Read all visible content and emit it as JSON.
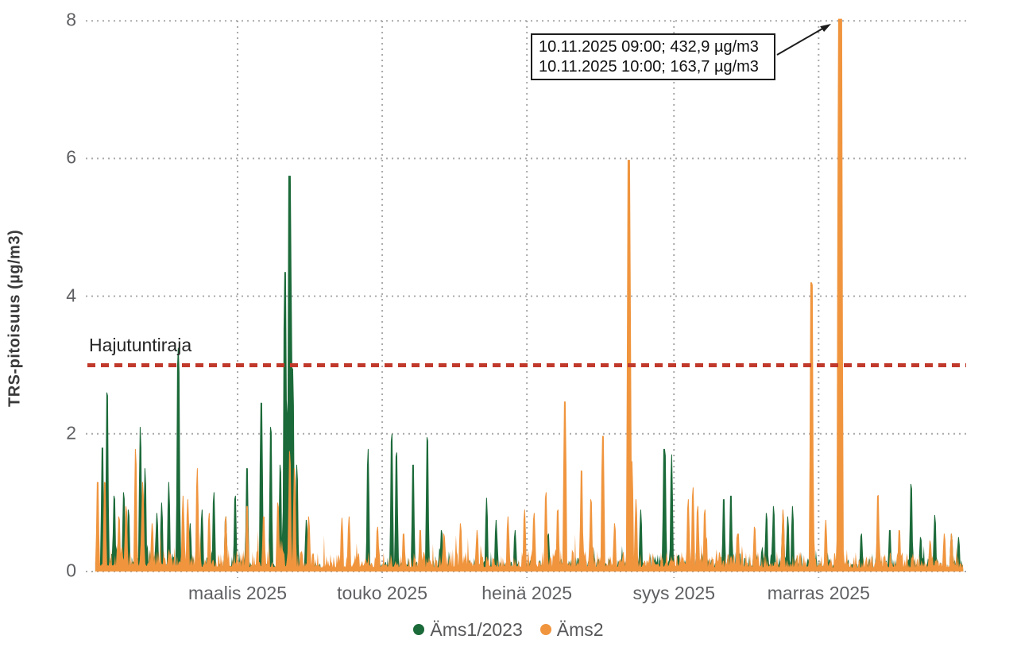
{
  "chart_data": {
    "type": "area",
    "title": "",
    "ylabel": "TRS-pitoisuus (µg/m3)",
    "xlabel": "",
    "ylim": [
      0,
      8
    ],
    "y_ticks": [
      0,
      2,
      4,
      6,
      8
    ],
    "x_ticks": [
      {
        "day": 60,
        "label": "maalis 2025"
      },
      {
        "day": 121,
        "label": "touko 2025"
      },
      {
        "day": 182,
        "label": "heinä 2025"
      },
      {
        "day": 244,
        "label": "syys 2025"
      },
      {
        "day": 305,
        "label": "marras 2025"
      }
    ],
    "time_axis": {
      "unit": "day-of-year 2025",
      "start_day": 0,
      "end_day": 366
    },
    "grid": "dotted",
    "grid_color": "#a9a9a9",
    "legend_position": "bottom-center",
    "threshold": {
      "label": "Hajutuntiraja",
      "value": 3,
      "color": "#c0392b",
      "style": "dashed"
    },
    "annotation": {
      "lines": [
        "10.11.2025 09:00; 432,9 µg/m3",
        "10.11.2025 10:00; 163,7 µg/m3"
      ],
      "points_to": {
        "series": "Äms2",
        "day": 314,
        "value_clipped_at": 8
      }
    },
    "noise_seed": 11,
    "series": [
      {
        "name": "Äms1/2023",
        "color": "#1b6a39",
        "min_value": 0.02,
        "peaks": [
          [
            3,
            1.8
          ],
          [
            5,
            2.6
          ],
          [
            8,
            1.1
          ],
          [
            12,
            1.15
          ],
          [
            14,
            0.9
          ],
          [
            19,
            2.1
          ],
          [
            21,
            1.5
          ],
          [
            26,
            0.85
          ],
          [
            28,
            1.0
          ],
          [
            31,
            1.3
          ],
          [
            35,
            3.25,
            0.45
          ],
          [
            40,
            0.7
          ],
          [
            45,
            0.9
          ],
          [
            50,
            1.15
          ],
          [
            55,
            0.8
          ],
          [
            59,
            1.1
          ],
          [
            64,
            1.5
          ],
          [
            70,
            2.45,
            0.45
          ],
          [
            74,
            2.1
          ],
          [
            78,
            1.55
          ],
          [
            80,
            4.35,
            0.5
          ],
          [
            82,
            5.75,
            0.6
          ],
          [
            83.3,
            2.95
          ],
          [
            85,
            1.55
          ],
          [
            89,
            0.75
          ],
          [
            115,
            1.78
          ],
          [
            125,
            2.0
          ],
          [
            127,
            1.73
          ],
          [
            134,
            1.55
          ],
          [
            140,
            1.95
          ],
          [
            146,
            0.6
          ],
          [
            165,
            1.07
          ],
          [
            169,
            0.75
          ],
          [
            177,
            0.6
          ],
          [
            191,
            0.55
          ],
          [
            230,
            0.9
          ],
          [
            240,
            1.78,
            0.5
          ],
          [
            243,
            1.7
          ],
          [
            252,
            0.6
          ],
          [
            265,
            1.05
          ],
          [
            268,
            1.1
          ],
          [
            283,
            0.85
          ],
          [
            286,
            0.95
          ],
          [
            290,
            0.85
          ],
          [
            292,
            0.8
          ],
          [
            294,
            0.95
          ],
          [
            323,
            0.55
          ],
          [
            335,
            0.6
          ],
          [
            344,
            1.27
          ],
          [
            348,
            0.5
          ],
          [
            354,
            0.82
          ],
          [
            361,
            0.55
          ],
          [
            364,
            0.5
          ]
        ],
        "baseline": [
          [
            0,
            34,
            0.42
          ],
          [
            34,
            60,
            0.3
          ],
          [
            60,
            95,
            0.33
          ],
          [
            95,
            118,
            0.07
          ],
          [
            118,
            160,
            0.26
          ],
          [
            160,
            196,
            0.22
          ],
          [
            196,
            232,
            0.28
          ],
          [
            232,
            298,
            0.36
          ],
          [
            298,
            366,
            0.26
          ]
        ]
      },
      {
        "name": "Äms2",
        "color": "#f0953e",
        "min_value": 0.05,
        "peaks": [
          [
            1,
            1.3
          ],
          [
            4,
            1.3
          ],
          [
            10,
            0.8
          ],
          [
            13,
            0.95
          ],
          [
            17,
            1.78
          ],
          [
            20,
            1.3
          ],
          [
            24,
            0.7
          ],
          [
            37,
            1.1
          ],
          [
            39,
            1.05
          ],
          [
            43,
            1.5
          ],
          [
            48,
            0.85
          ],
          [
            55,
            0.8
          ],
          [
            64,
            0.95
          ],
          [
            71,
            0.8
          ],
          [
            77,
            1.0
          ],
          [
            82,
            1.75
          ],
          [
            84,
            1.5
          ],
          [
            90,
            0.8
          ],
          [
            104,
            0.78
          ],
          [
            107,
            0.8
          ],
          [
            119,
            0.65
          ],
          [
            130,
            0.55
          ],
          [
            137,
            0.6
          ],
          [
            147,
            0.55
          ],
          [
            154,
            0.7
          ],
          [
            161,
            0.6
          ],
          [
            174,
            0.8
          ],
          [
            181,
            0.9
          ],
          [
            185,
            0.85
          ],
          [
            190,
            1.15
          ],
          [
            195,
            0.9
          ],
          [
            198,
            2.47,
            0.45
          ],
          [
            205,
            1.47
          ],
          [
            209,
            1.05
          ],
          [
            214,
            1.97,
            0.45
          ],
          [
            219,
            0.7
          ],
          [
            225,
            5.98,
            0.6
          ],
          [
            226.3,
            1.6
          ],
          [
            228,
            1.05
          ],
          [
            250,
            1.05
          ],
          [
            252,
            1.22
          ],
          [
            254,
            0.95
          ],
          [
            257,
            0.9
          ],
          [
            271,
            0.55
          ],
          [
            278,
            0.65
          ],
          [
            290,
            0.9
          ],
          [
            302,
            4.2,
            0.5
          ],
          [
            308,
            0.75
          ],
          [
            314,
            8.2,
            0.9
          ],
          [
            330,
            1.11
          ],
          [
            339,
            0.6
          ],
          [
            352,
            0.45
          ],
          [
            358,
            0.55
          ],
          [
            361,
            0.55
          ]
        ],
        "baseline": [
          [
            0,
            40,
            0.5
          ],
          [
            40,
            95,
            0.42
          ],
          [
            95,
            150,
            0.38
          ],
          [
            150,
            196,
            0.4
          ],
          [
            196,
            262,
            0.42
          ],
          [
            262,
            310,
            0.38
          ],
          [
            310,
            366,
            0.36
          ]
        ]
      }
    ]
  }
}
